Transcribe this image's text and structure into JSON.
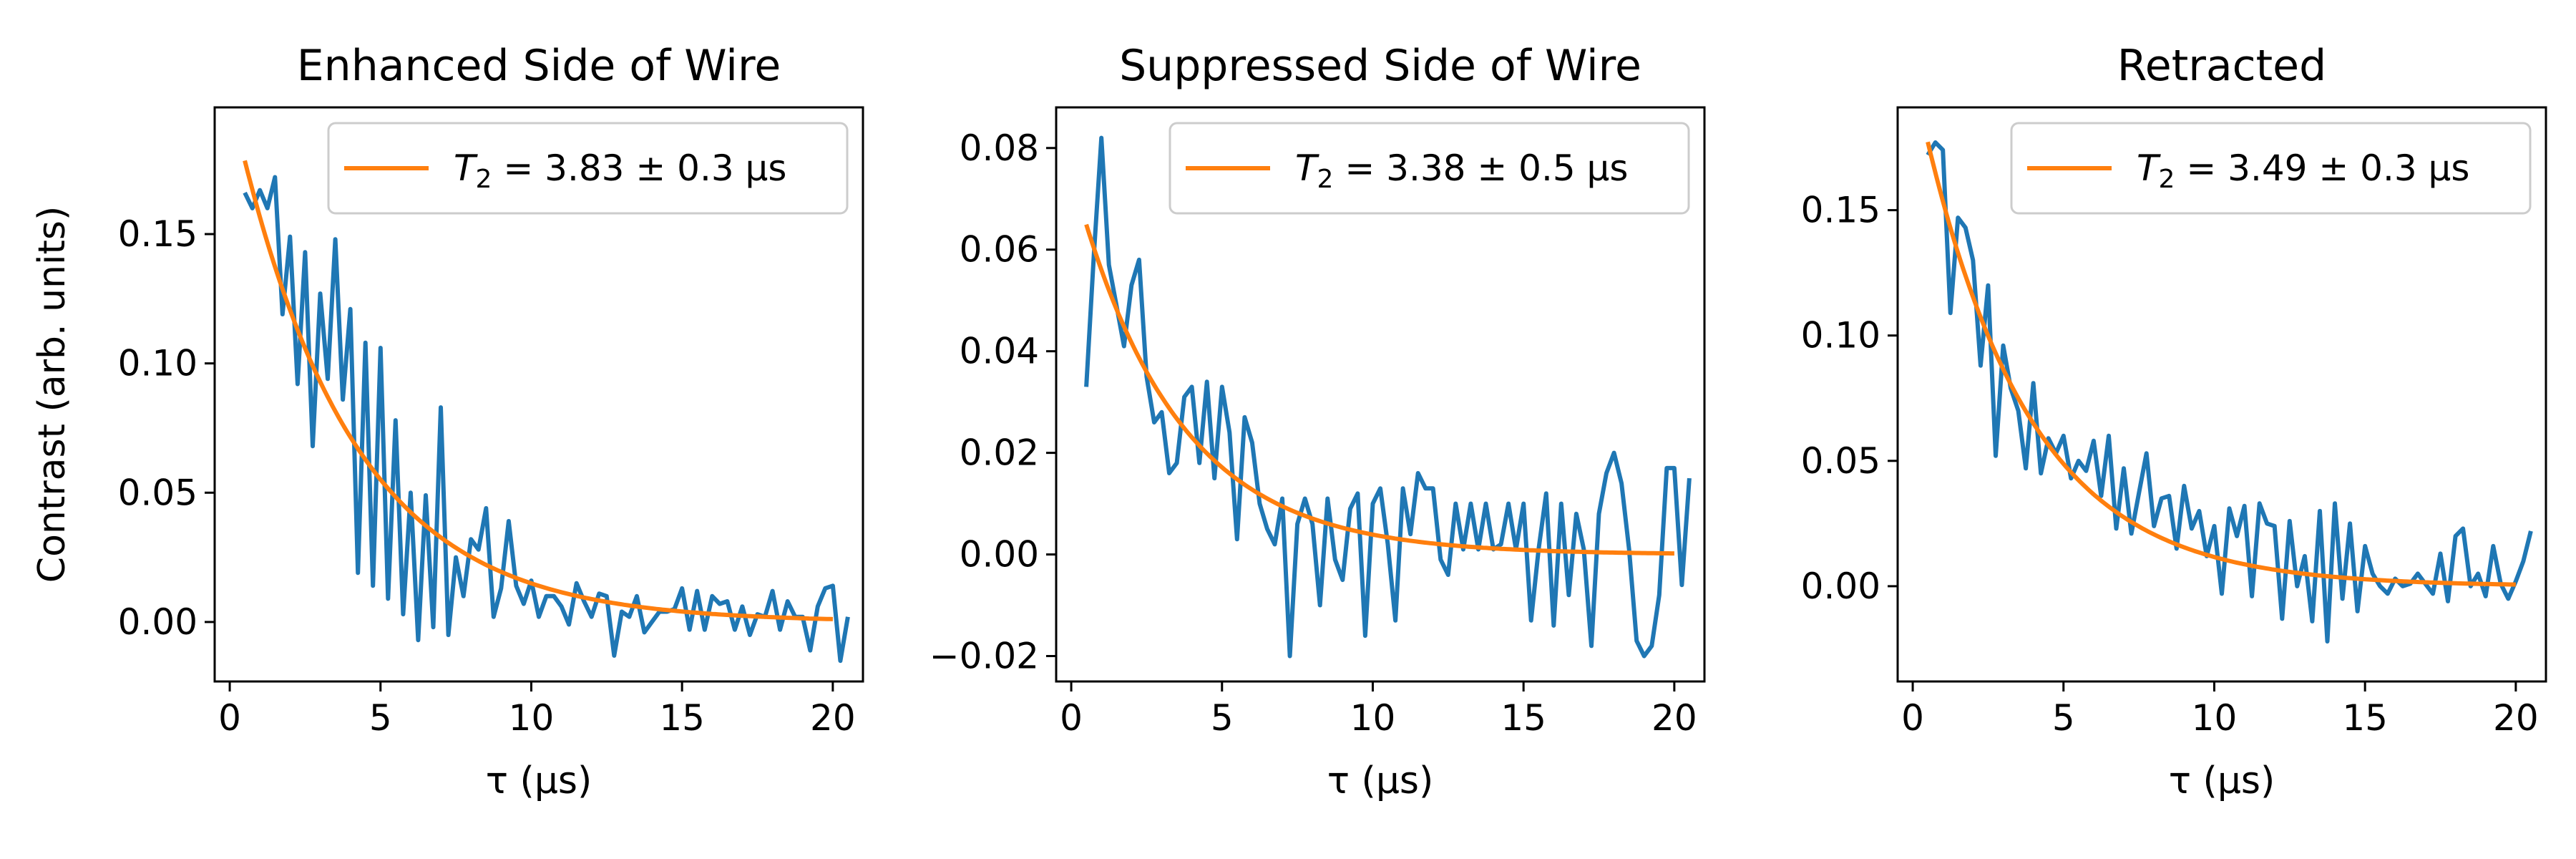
{
  "colors": {
    "data": "#1f77b4",
    "fit": "#ff7f0e",
    "axes": "#000000",
    "legend_border": "#cccccc"
  },
  "figure": {
    "shared_ylabel": "Contrast (arb. units)"
  },
  "chart_data": [
    {
      "type": "line",
      "title": "Enhanced Side of Wire",
      "xlabel": "τ (μs)",
      "ylabel": "Contrast (arb. units)",
      "xlim": [
        -0.5,
        21
      ],
      "ylim": [
        -0.023,
        0.199
      ],
      "xticks": [
        0,
        5,
        10,
        15,
        20
      ],
      "xtick_labels": [
        "0",
        "5",
        "10",
        "15",
        "20"
      ],
      "yticks": [
        0.0,
        0.05,
        0.1,
        0.15
      ],
      "ytick_labels": [
        "0.00",
        "0.05",
        "0.10",
        "0.15"
      ],
      "legend": {
        "label_prefix": "T",
        "label_sub": "2",
        "label_rest": " = 3.83 ± 0.3 μs",
        "placement": "top-right"
      },
      "series": [
        {
          "name": "data",
          "x_start": 0.5,
          "x_step": 0.25,
          "values": [
            0.166,
            0.16,
            0.167,
            0.16,
            0.172,
            0.119,
            0.149,
            0.092,
            0.143,
            0.068,
            0.127,
            0.094,
            0.148,
            0.086,
            0.121,
            0.019,
            0.108,
            0.014,
            0.106,
            0.009,
            0.078,
            0.003,
            0.05,
            -0.007,
            0.049,
            -0.002,
            0.083,
            -0.005,
            0.025,
            0.01,
            0.032,
            0.028,
            0.044,
            0.002,
            0.013,
            0.039,
            0.014,
            0.007,
            0.016,
            0.002,
            0.01,
            0.01,
            0.006,
            -0.001,
            0.015,
            0.008,
            0.002,
            0.011,
            0.01,
            -0.013,
            0.004,
            0.002,
            0.01,
            -0.004,
            0.0,
            0.004,
            0.004,
            0.005,
            0.013,
            -0.003,
            0.012,
            -0.003,
            0.01,
            0.007,
            0.008,
            -0.003,
            0.006,
            -0.005,
            0.003,
            0.002,
            0.012,
            -0.003,
            0.008,
            0.002,
            0.002,
            -0.011,
            0.006,
            0.013,
            0.014,
            -0.015,
            0.002
          ]
        },
        {
          "name": "T2 fit",
          "model": "exp_decay",
          "amplitude": 0.2033,
          "tau": 3.83,
          "x_range": [
            0.5,
            20
          ]
        }
      ]
    },
    {
      "type": "line",
      "title": "Suppressed Side of Wire",
      "xlabel": "τ (μs)",
      "ylabel": "",
      "xlim": [
        -0.5,
        21
      ],
      "ylim": [
        -0.025,
        0.088
      ],
      "xticks": [
        0,
        5,
        10,
        15,
        20
      ],
      "xtick_labels": [
        "0",
        "5",
        "10",
        "15",
        "20"
      ],
      "yticks": [
        -0.02,
        0.0,
        0.02,
        0.04,
        0.06,
        0.08
      ],
      "ytick_labels": [
        "−0.02",
        "0.00",
        "0.02",
        "0.04",
        "0.06",
        "0.08"
      ],
      "legend": {
        "label_prefix": "T",
        "label_sub": "2",
        "label_rest": " = 3.38 ± 0.5 μs",
        "placement": "top-right"
      },
      "series": [
        {
          "name": "data",
          "x_start": 0.5,
          "x_step": 0.25,
          "values": [
            0.033,
            0.059,
            0.082,
            0.057,
            0.049,
            0.041,
            0.053,
            0.058,
            0.035,
            0.026,
            0.028,
            0.016,
            0.018,
            0.031,
            0.033,
            0.018,
            0.034,
            0.015,
            0.033,
            0.024,
            0.003,
            0.027,
            0.022,
            0.01,
            0.005,
            0.002,
            0.011,
            -0.02,
            0.006,
            0.011,
            0.006,
            -0.01,
            0.011,
            -0.001,
            -0.005,
            0.009,
            0.012,
            -0.016,
            0.01,
            0.013,
            0.002,
            -0.013,
            0.013,
            0.004,
            0.016,
            0.013,
            0.013,
            -0.001,
            -0.004,
            0.01,
            0.001,
            0.01,
            0.001,
            0.01,
            0.001,
            0.002,
            0.01,
            0.001,
            0.01,
            -0.013,
            0.001,
            0.012,
            -0.014,
            0.01,
            -0.008,
            0.008,
            0.001,
            -0.018,
            0.008,
            0.016,
            0.02,
            0.014,
            0.001,
            -0.017,
            -0.02,
            -0.018,
            -0.008,
            0.017,
            0.017,
            -0.006,
            0.015
          ]
        },
        {
          "name": "T2 fit",
          "model": "exp_decay",
          "amplitude": 0.0753,
          "tau": 3.38,
          "x_range": [
            0.5,
            20
          ]
        }
      ]
    },
    {
      "type": "line",
      "title": "Retracted",
      "xlabel": "τ (μs)",
      "ylabel": "",
      "xlim": [
        -0.5,
        21
      ],
      "ylim": [
        -0.038,
        0.191
      ],
      "xticks": [
        0,
        5,
        10,
        15,
        20
      ],
      "xtick_labels": [
        "0",
        "5",
        "10",
        "15",
        "20"
      ],
      "yticks": [
        0.0,
        0.05,
        0.1,
        0.15
      ],
      "ytick_labels": [
        "0.00",
        "0.05",
        "0.10",
        "0.15"
      ],
      "legend": {
        "label_prefix": "T",
        "label_sub": "2",
        "label_rest": " = 3.49 ± 0.3 μs",
        "placement": "top-right"
      },
      "series": [
        {
          "name": "data",
          "x_start": 0.5,
          "x_step": 0.25,
          "values": [
            0.172,
            0.177,
            0.174,
            0.109,
            0.147,
            0.143,
            0.13,
            0.088,
            0.12,
            0.052,
            0.096,
            0.079,
            0.07,
            0.047,
            0.081,
            0.045,
            0.059,
            0.053,
            0.06,
            0.043,
            0.05,
            0.046,
            0.058,
            0.036,
            0.06,
            0.023,
            0.047,
            0.021,
            0.037,
            0.053,
            0.024,
            0.035,
            0.036,
            0.015,
            0.04,
            0.023,
            0.03,
            0.012,
            0.024,
            -0.003,
            0.031,
            0.02,
            0.032,
            -0.004,
            0.033,
            0.025,
            0.024,
            -0.013,
            0.026,
            0.0,
            0.012,
            -0.014,
            0.03,
            -0.022,
            0.033,
            -0.005,
            0.025,
            -0.01,
            0.016,
            0.005,
            0.0,
            -0.003,
            0.003,
            0.0,
            0.001,
            0.005,
            0.001,
            -0.003,
            0.013,
            -0.006,
            0.02,
            0.023,
            0.0,
            0.005,
            -0.004,
            0.016,
            0.001,
            -0.005,
            0.002,
            0.01,
            0.022
          ]
        },
        {
          "name": "T2 fit",
          "model": "exp_decay",
          "amplitude": 0.2045,
          "tau": 3.49,
          "x_range": [
            0.5,
            20
          ]
        }
      ]
    }
  ]
}
